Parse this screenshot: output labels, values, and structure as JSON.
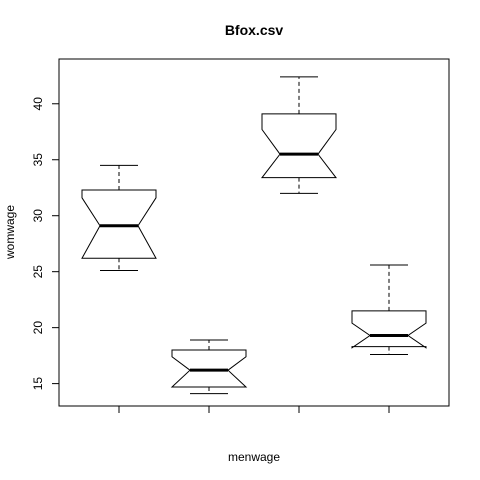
{
  "chart_data": {
    "type": "boxplot",
    "title": "Bfox.csv",
    "xlabel": "menwage",
    "ylabel": "womwage",
    "ylim": [
      13,
      44
    ],
    "yticks": [
      15,
      20,
      25,
      30,
      35,
      40
    ],
    "notched": true,
    "grid": false,
    "legend": false,
    "boxes": [
      {
        "whisker_low": 25.1,
        "q1": 26.2,
        "notch_low": 26.2,
        "median": 29.1,
        "notch_high": 31.6,
        "q3": 32.3,
        "whisker_high": 34.5
      },
      {
        "whisker_low": 14.1,
        "q1": 14.7,
        "notch_low": 14.7,
        "median": 16.2,
        "notch_high": 17.4,
        "q3": 18.0,
        "whisker_high": 18.9
      },
      {
        "whisker_low": 32.0,
        "q1": 33.4,
        "notch_low": 33.4,
        "median": 35.5,
        "notch_high": 37.7,
        "q3": 39.1,
        "whisker_high": 42.4
      },
      {
        "whisker_low": 17.6,
        "q1": 18.3,
        "notch_low": 18.2,
        "median": 19.3,
        "notch_high": 20.4,
        "q3": 21.5,
        "whisker_high": 25.6
      }
    ]
  }
}
